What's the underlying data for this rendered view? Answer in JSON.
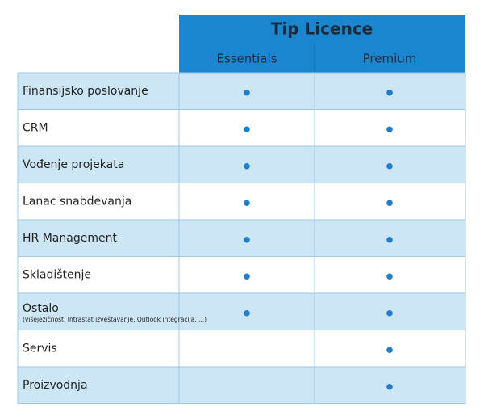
{
  "header": {
    "title": "Tip Licence",
    "columns": [
      "Essentials",
      "Premium"
    ]
  },
  "table": {
    "rows": [
      {
        "label": "Finansijsko poslovanje",
        "essentials": true,
        "premium": true
      },
      {
        "label": "CRM",
        "essentials": true,
        "premium": true
      },
      {
        "label": "Vođenje projekata",
        "essentials": true,
        "premium": true
      },
      {
        "label": "Lanac snabdevanja",
        "essentials": true,
        "premium": true
      },
      {
        "label": "HR Management",
        "essentials": true,
        "premium": true
      },
      {
        "label": "Skladištenje",
        "essentials": true,
        "premium": true
      },
      {
        "label": "Ostalo",
        "note": "(višejezičnost, Intrastat izveštavanje, Outlook integracija, ...)",
        "essentials": true,
        "premium": true
      },
      {
        "label": "Servis",
        "essentials": false,
        "premium": true
      },
      {
        "label": "Proizvodnja",
        "essentials": false,
        "premium": true
      }
    ]
  }
}
